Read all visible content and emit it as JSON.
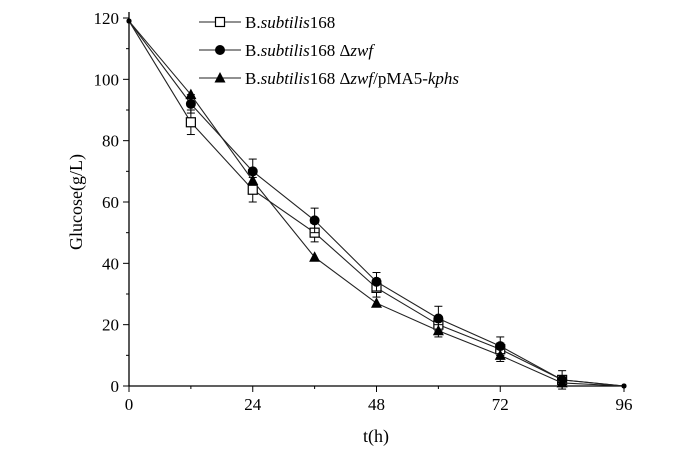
{
  "chart_data": {
    "type": "line",
    "title": "",
    "xlabel": "t(h)",
    "ylabel": "Glucose(g/L)",
    "xlim": [
      0,
      96
    ],
    "ylim": [
      0,
      120
    ],
    "xticks": [
      0,
      24,
      48,
      72,
      96
    ],
    "yticks": [
      0,
      20,
      40,
      60,
      80,
      100,
      120
    ],
    "grid": false,
    "legend_position": "top-center",
    "series": [
      {
        "name": "B.subtilis168",
        "name_parts": [
          {
            "t": "B.",
            "i": false
          },
          {
            "t": "subtilis",
            "i": true
          },
          {
            "t": "168",
            "i": false
          }
        ],
        "marker": "open-square",
        "x": [
          0,
          12,
          24,
          36,
          48,
          60,
          72,
          84,
          96
        ],
        "y": [
          119,
          86,
          64,
          50,
          32,
          20,
          12,
          2,
          0
        ],
        "err": [
          0,
          4,
          4,
          3,
          3,
          2,
          2,
          1,
          0
        ]
      },
      {
        "name": "B.subtilis168 Δzwf",
        "name_parts": [
          {
            "t": "B.",
            "i": false
          },
          {
            "t": "subtilis",
            "i": true
          },
          {
            "t": "168 Δ",
            "i": false
          },
          {
            "t": "zwf",
            "i": true
          }
        ],
        "marker": "filled-circle",
        "x": [
          0,
          12,
          24,
          36,
          48,
          60,
          72,
          84,
          96
        ],
        "y": [
          119,
          92,
          70,
          54,
          34,
          22,
          13,
          2,
          0
        ],
        "err": [
          0,
          3,
          4,
          4,
          3,
          4,
          3,
          3,
          0
        ]
      },
      {
        "name": "B.subtilis168 Δzwf/pMA5-kphs",
        "name_parts": [
          {
            "t": "B.",
            "i": false
          },
          {
            "t": "subtilis",
            "i": true
          },
          {
            "t": "168 Δ",
            "i": false
          },
          {
            "t": "zwf",
            "i": true
          },
          {
            "t": "/pMA5-",
            "i": false
          },
          {
            "t": "kphs",
            "i": true
          }
        ],
        "marker": "filled-triangle",
        "x": [
          0,
          12,
          24,
          36,
          48,
          60,
          72,
          84,
          96
        ],
        "y": [
          119,
          95,
          67,
          42,
          27,
          18,
          10,
          1,
          0
        ],
        "err": [
          0,
          0,
          0,
          0,
          0,
          2,
          2,
          0,
          0
        ]
      }
    ]
  }
}
